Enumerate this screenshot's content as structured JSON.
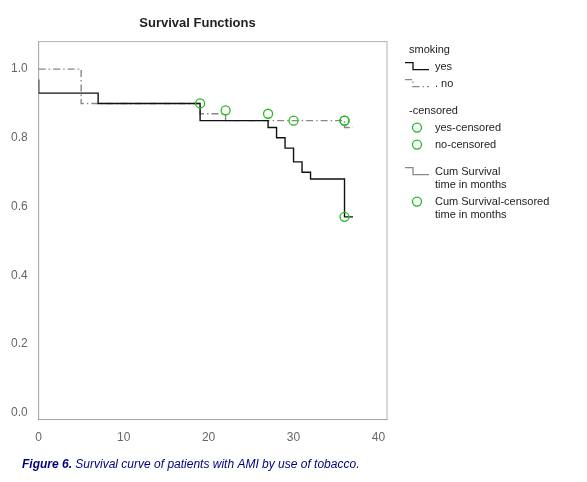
{
  "chart_data": {
    "type": "step",
    "title": "Survival Functions",
    "xlim": [
      0,
      41
    ],
    "ylim": [
      -0.02,
      1.08
    ],
    "xticks": [
      0,
      10,
      20,
      30,
      40
    ],
    "yticks": [
      {
        "value": 0.0,
        "label": "0.0"
      },
      0.2,
      0.4,
      0.6,
      0.8,
      {
        "value": 1.0,
        "label": "1.0"
      }
    ],
    "grid": false,
    "legend": "right",
    "series": [
      {
        "name": "yes",
        "type": "line",
        "color": "#111111",
        "line_style": "solid",
        "x": [
          0,
          7,
          14,
          19,
          19,
          27,
          28,
          29,
          30,
          31,
          32,
          33,
          36,
          37
        ],
        "values": [
          0.97,
          0.93,
          0.9,
          0.9,
          0.88,
          0.85,
          0.83,
          0.8,
          0.77,
          0.73,
          0.7,
          0.68,
          0.68,
          0.57
        ]
      },
      {
        "name": ". no",
        "type": "line",
        "color": "#888888",
        "line_style": "dashdot",
        "x": [
          0,
          5,
          19,
          22,
          27,
          36,
          37
        ],
        "values": [
          1.0,
          1.0,
          0.9,
          0.87,
          0.85,
          0.85,
          0.83
        ]
      },
      {
        "name": "yes-censored",
        "type": "scatter",
        "marker": "circle",
        "color": "#22bb22",
        "x": [
          19,
          22,
          30,
          36,
          36
        ],
        "values": [
          0.9,
          0.88,
          0.85,
          0.85,
          0.57
        ]
      },
      {
        "name": "no-censored",
        "type": "scatter",
        "marker": "circle",
        "color": "#22bb22",
        "x": [
          27,
          36
        ],
        "values": [
          0.87,
          0.85
        ]
      }
    ],
    "annotations": [
      {
        "text": "smoking"
      },
      {
        "text": "-censored"
      },
      {
        "text": "Cum Survival\ntime in months",
        "marker": "step",
        "color": "#888888"
      },
      {
        "text": "Cum Survival-censored\ntime in months",
        "marker": "circle",
        "color": "#22bb22"
      }
    ],
    "caption": {
      "bold": "Figure 6.",
      "text": " Survival curve of patients with AMI by use of tobacco.",
      "color": "#000080"
    }
  }
}
